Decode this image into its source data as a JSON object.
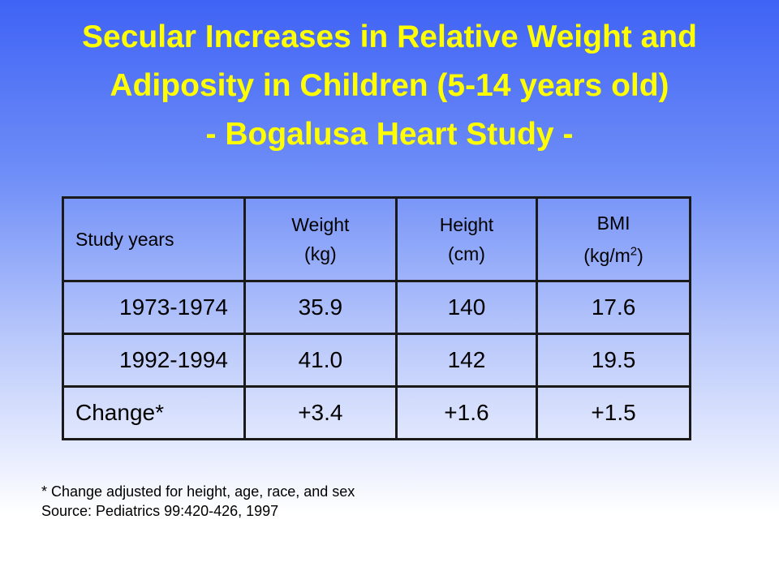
{
  "slide": {
    "title_lines": [
      "Secular Increases in Relative Weight and",
      "Adiposity in Children (5-14 years old)",
      "- Bogalusa Heart Study -"
    ]
  },
  "table": {
    "headers": {
      "study_years": "Study years",
      "weight_line1": "Weight",
      "weight_line2": "(kg)",
      "height_line1": "Height",
      "height_line2": "(cm)",
      "bmi_line1": "BMI",
      "bmi_line2_pre": "(kg/m",
      "bmi_line2_sup": "2",
      "bmi_line2_post": ")"
    },
    "rows": [
      {
        "label": "1973-1974",
        "weight": "35.9",
        "height": "140",
        "bmi": "17.6"
      },
      {
        "label": "1992-1994",
        "weight": "41.0",
        "height": "142",
        "bmi": "19.5"
      },
      {
        "label": "Change*",
        "weight": "+3.4",
        "height": "+1.6",
        "bmi": "+1.5"
      }
    ]
  },
  "footnotes": [
    "* Change adjusted for height, age, race, and sex",
    "Source:  Pediatrics 99:420-426, 1997"
  ],
  "colors": {
    "title": "#ffff00",
    "background_top": "#3f63f5",
    "background_bottom": "#ffffff"
  }
}
